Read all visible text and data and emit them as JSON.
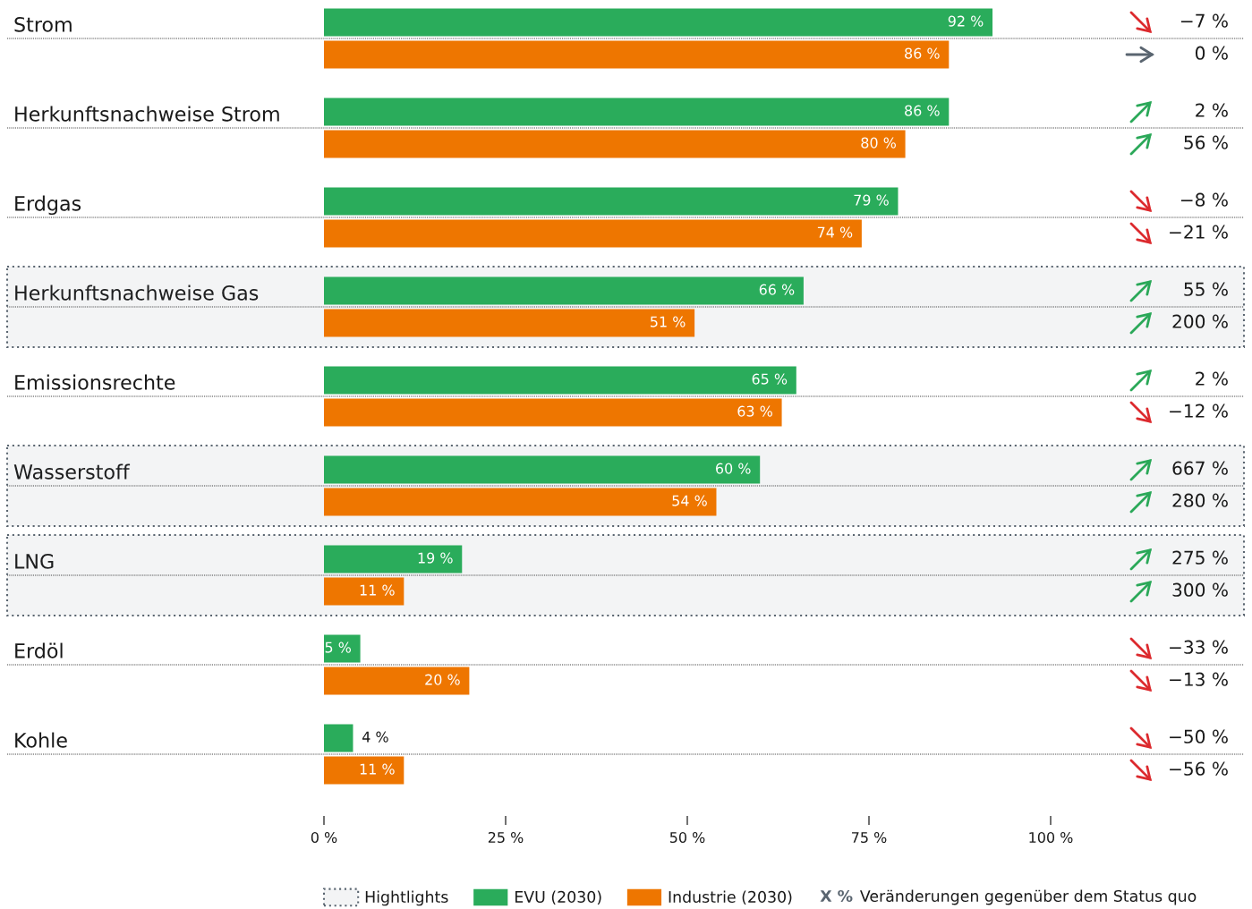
{
  "chart_data": [
    {
      "type": "bar",
      "orientation": "horizontal",
      "categories": [
        "Strom",
        "Herkunftsnachweise Strom",
        "Erdgas",
        "Herkunftsnachweise Gas",
        "Emissionsrechte",
        "Wasserstoff",
        "LNG",
        "Erdöl",
        "Kohle"
      ],
      "series": [
        {
          "name": "EVU (2030)",
          "color": "#2aac5b",
          "values": [
            92,
            86,
            79,
            66,
            65,
            60,
            19,
            5,
            4
          ],
          "value_labels": [
            "92 %",
            "86 %",
            "79 %",
            "66 %",
            "65 %",
            "60 %",
            "19 %",
            "5 %",
            "4 %"
          ]
        },
        {
          "name": "Industrie (2030)",
          "color": "#ee7600",
          "values": [
            86,
            80,
            74,
            51,
            63,
            54,
            11,
            20,
            11
          ],
          "value_labels": [
            "86 %",
            "80 %",
            "74 %",
            "51 %",
            "63 %",
            "54 %",
            "11 %",
            "20 %",
            "11 %"
          ]
        }
      ],
      "xlim": [
        0,
        100
      ],
      "xticks": [
        {
          "value": 0,
          "label": "0 %"
        },
        {
          "value": 25,
          "label": "25 %"
        },
        {
          "value": 50,
          "label": "50 %"
        },
        {
          "value": 75,
          "label": "75 %"
        },
        {
          "value": 100,
          "label": "100 %"
        }
      ],
      "grid": "y",
      "legend": "bottom",
      "bands": [
        {
          "axis": "y",
          "from": "Herkunftsnachweise Gas",
          "to": "Herkunftsnachweise Gas",
          "label": "Hightlights",
          "color": "#5a6570"
        },
        {
          "axis": "y",
          "from": "Wasserstoff",
          "to": "Wasserstoff",
          "color": "#5a6570"
        },
        {
          "axis": "y",
          "from": "LNG",
          "to": "LNG",
          "color": "#5a6570"
        }
      ],
      "annotations": [
        "X %",
        "Veränderungen gegenüber dem Status quo"
      ]
    },
    {
      "type": "other",
      "annotations": [
        "−7 %",
        "0 %",
        "2 %",
        "56 %",
        "−8 %",
        "−21 %",
        "55 %",
        "200 %",
        "2 %",
        "−12 %",
        "667 %",
        "280 %",
        "275 %",
        "300 %",
        "−33 %",
        "−13 %",
        "−50 %",
        "−56 %"
      ]
    }
  ]
}
